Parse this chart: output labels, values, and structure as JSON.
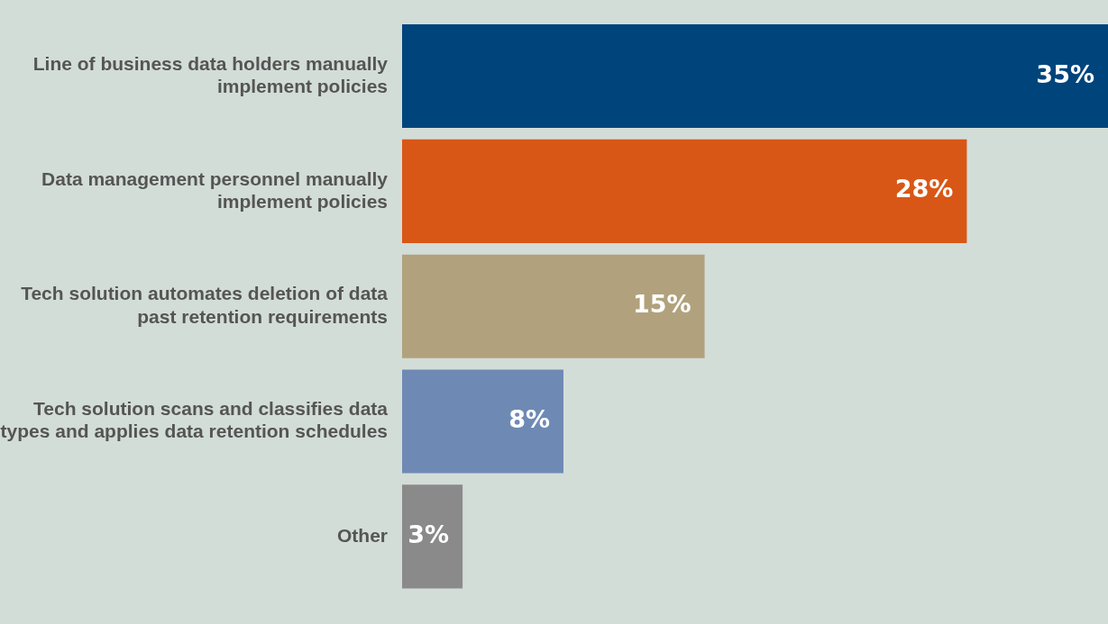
{
  "chart_data": {
    "type": "bar",
    "orientation": "horizontal",
    "categories": [
      "Line of business data holders manually implement policies",
      "Data management personnel manually implement policies",
      "Tech solution automates deletion of data past retention requirements",
      "Tech solution scans and classifies data types and applies data retention schedules",
      "Other"
    ],
    "values": [
      35,
      28,
      15,
      8,
      3
    ],
    "colors": [
      "#00447c",
      "#d85716",
      "#b1a27d",
      "#6e8ab4",
      "#8a8a8a"
    ],
    "value_labels": [
      "35%",
      "28%",
      "15%",
      "8%",
      "3%"
    ],
    "xlim": [
      0,
      35
    ],
    "tick_labels": "y",
    "legend": false
  }
}
